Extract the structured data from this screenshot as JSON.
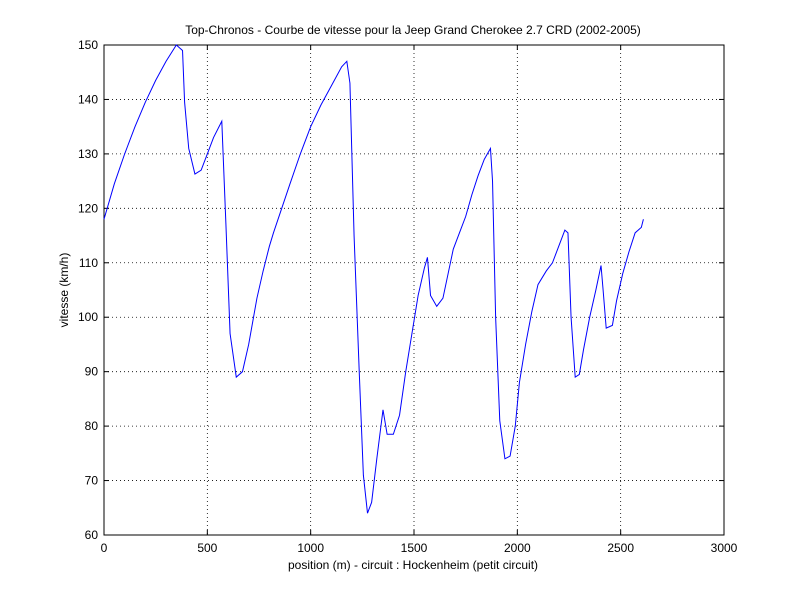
{
  "chart_data": {
    "type": "line",
    "title": "Top-Chronos - Courbe de vitesse pour la Jeep Grand Cherokee 2.7 CRD (2002-2005)",
    "xlabel": "position (m) - circuit : Hockenheim (petit circuit)",
    "ylabel": "vitesse (km/h)",
    "xlim": [
      0,
      3000
    ],
    "ylim": [
      60,
      150
    ],
    "xticks": [
      0,
      500,
      1000,
      1500,
      2000,
      2500,
      3000
    ],
    "yticks": [
      60,
      70,
      80,
      90,
      100,
      110,
      120,
      130,
      140,
      150
    ],
    "grid": true,
    "line_color": "#0000ff",
    "series": [
      {
        "x": [
          0,
          50,
          100,
          150,
          200,
          250,
          300,
          350,
          380,
          390,
          410,
          440,
          470,
          500,
          530,
          570,
          590,
          610,
          640,
          670,
          700,
          740,
          770,
          800,
          820,
          860,
          900,
          950,
          1000,
          1050,
          1100,
          1150,
          1175,
          1190,
          1210,
          1235,
          1255,
          1275,
          1295,
          1320,
          1350,
          1370,
          1400,
          1430,
          1460,
          1490,
          1520,
          1550,
          1565,
          1580,
          1610,
          1640,
          1665,
          1690,
          1720,
          1750,
          1780,
          1810,
          1840,
          1870,
          1880,
          1895,
          1915,
          1940,
          1965,
          1990,
          2010,
          2040,
          2070,
          2100,
          2140,
          2170,
          2200,
          2230,
          2245,
          2260,
          2280,
          2300,
          2320,
          2350,
          2380,
          2405,
          2415,
          2430,
          2460,
          2480,
          2510,
          2540,
          2570,
          2600,
          2610
        ],
        "y": [
          118,
          124.5,
          130,
          135,
          139.5,
          143.5,
          147,
          150,
          149,
          139.5,
          131,
          126.3,
          127,
          130,
          133,
          136,
          117,
          97,
          89,
          90,
          95,
          103.5,
          108.5,
          113,
          115.5,
          120,
          124.5,
          130,
          135,
          139,
          142.5,
          146,
          147,
          143,
          115,
          90,
          71,
          64,
          66,
          74,
          83,
          78.5,
          78.5,
          82,
          90,
          97,
          104,
          109,
          111,
          104,
          102,
          103.5,
          108,
          112.5,
          115.5,
          118.5,
          122.5,
          126,
          129,
          131,
          125,
          100,
          81,
          74,
          74.5,
          80,
          88,
          95,
          101,
          106,
          108.5,
          110,
          113,
          116,
          115.5,
          100,
          89,
          89.5,
          94,
          100,
          105,
          109.5,
          105,
          98,
          98.5,
          103,
          108,
          112,
          115.5,
          116.5,
          118
        ]
      }
    ]
  }
}
